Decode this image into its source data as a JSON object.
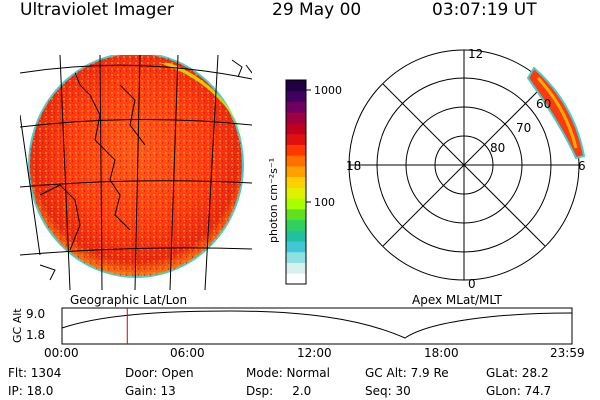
{
  "header": {
    "instrument": "Ultraviolet Imager",
    "date": "29 May 00",
    "time": "03:07:19 UT"
  },
  "colorbar": {
    "unit_label": "photon cm⁻²s⁻¹",
    "ticks": [
      "1000",
      "100"
    ],
    "colors": [
      "#ffffff",
      "#d9f0f0",
      "#8fe0e0",
      "#40c8d8",
      "#20c0a0",
      "#30d060",
      "#60e020",
      "#a8ff00",
      "#e0f000",
      "#ffd000",
      "#ffa000",
      "#ff7000",
      "#ff3800",
      "#e01010",
      "#c00020",
      "#a00040",
      "#700060",
      "#400060",
      "#200040"
    ]
  },
  "polar": {
    "mlt_labels": {
      "top": "12",
      "left": "18",
      "right": "6",
      "bottom": "0"
    },
    "mlat_labels": [
      "60",
      "70",
      "80"
    ]
  },
  "orbit": {
    "left_label": "Geographic Lat/Lon",
    "right_label": "Apex MLat/MLT",
    "axis_label": "GC Alt",
    "ytick_top": "9.0",
    "ytick_bottom": "1.8",
    "time_ticks": [
      "00:00",
      "06:00",
      "12:00",
      "18:00",
      "23:59"
    ],
    "marker_fraction": 0.128
  },
  "status": {
    "flt": "Flt: 1304",
    "door": "Door: Open",
    "mode": "Mode: Normal",
    "gc_alt": "GC Alt: 7.9 Re",
    "glat": "GLat: 28.2",
    "ip": "IP: 18.0",
    "gain": "Gain: 13",
    "dsp": "Dsp:     2.0",
    "seq": "Seq: 30",
    "glon": "GLon: 74.7"
  }
}
